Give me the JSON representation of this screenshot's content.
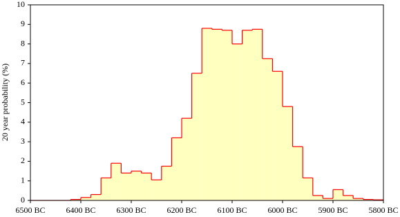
{
  "chart_data": {
    "type": "histogram",
    "y_label": "20 year probability (%)",
    "bins": [
      -6500,
      -6480,
      -6460,
      -6440,
      -6420,
      -6400,
      -6380,
      -6360,
      -6340,
      -6320,
      -6300,
      -6280,
      -6260,
      -6240,
      -6220,
      -6200,
      -6180,
      -6160,
      -6140,
      -6120,
      -6100,
      -6080,
      -6060,
      -6040,
      -6020,
      -6000,
      -5980,
      -5960,
      -5940,
      -5920,
      -5900,
      -5880,
      -5860,
      -5840,
      -5820,
      -5800
    ],
    "values": [
      0,
      0,
      0,
      0,
      0.05,
      0.15,
      0.3,
      1.15,
      1.9,
      1.4,
      1.5,
      1.4,
      1.05,
      1.75,
      3.2,
      4.2,
      6.5,
      8.8,
      8.75,
      8.7,
      8.0,
      8.7,
      8.75,
      7.25,
      6.6,
      4.8,
      2.75,
      1.15,
      0.25,
      0.1,
      0.55,
      0.25,
      0.1,
      0.05,
      0.03
    ],
    "color": "#ffffc0",
    "edge_color": "#ff0000",
    "xlim": [
      -6500,
      -5800
    ],
    "xticks": [
      {
        "value": -6500,
        "label": "6500 BC"
      },
      {
        "value": -6400,
        "label": "6400 BC"
      },
      {
        "value": -6300,
        "label": "6300 BC"
      },
      {
        "value": -6200,
        "label": "6200 BC"
      },
      {
        "value": -6100,
        "label": "6100 BC"
      },
      {
        "value": -6000,
        "label": "6000 BC"
      },
      {
        "value": -5900,
        "label": "5900 BC"
      },
      {
        "value": -5800,
        "label": "5800 BC"
      }
    ],
    "ylim": [
      0,
      10
    ],
    "yticks": [
      0,
      1,
      2,
      3,
      4,
      5,
      6,
      7,
      8,
      9,
      10
    ],
    "grid": false
  }
}
